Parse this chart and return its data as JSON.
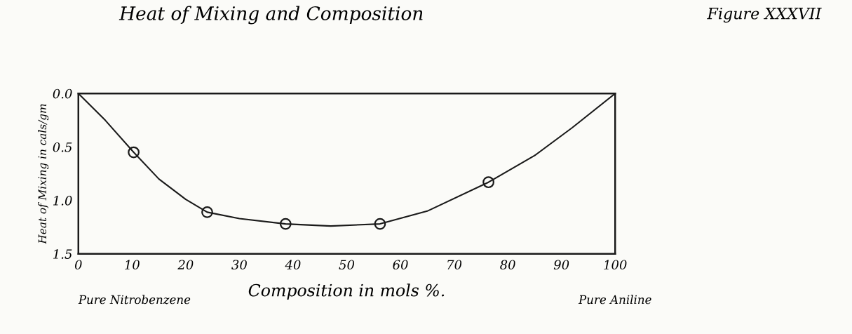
{
  "chart_data": {
    "type": "line",
    "title": "Heat of Mixing and Composition",
    "xlabel": "Composition in mols %.",
    "ylabel": "Heat of Mixing in cals/gm",
    "annotations": [
      "Pure Nitrobenzene",
      "Pure Aniline",
      "Figure XXXVII"
    ],
    "xlim": [
      0,
      100
    ],
    "xticks": [
      0,
      10,
      20,
      30,
      40,
      50,
      60,
      70,
      80,
      90,
      100
    ],
    "ylim": [
      1.5,
      0
    ],
    "yticks": [
      {
        "value": 0,
        "label": "0.0"
      },
      0.5,
      {
        "value": 1.0,
        "label": "1.0"
      },
      1.5
    ],
    "grid": false,
    "series": [
      {
        "color": "#1a1a1a",
        "marker": "none",
        "x": [
          0,
          5,
          10.3,
          15,
          20,
          24,
          30,
          38.6,
          47,
          56.2,
          65,
          76.4,
          85,
          92,
          100
        ],
        "values": [
          0,
          0.25,
          0.55,
          0.8,
          0.99,
          1.11,
          1.17,
          1.22,
          1.24,
          1.22,
          1.1,
          0.83,
          0.58,
          0.32,
          0
        ]
      },
      {
        "type": "scatter",
        "color": "#1a1a1a",
        "marker": "circle",
        "x": [
          10.3,
          24,
          38.6,
          56.2,
          76.4
        ],
        "values": [
          0.55,
          1.11,
          1.22,
          1.22,
          0.83
        ]
      }
    ]
  }
}
